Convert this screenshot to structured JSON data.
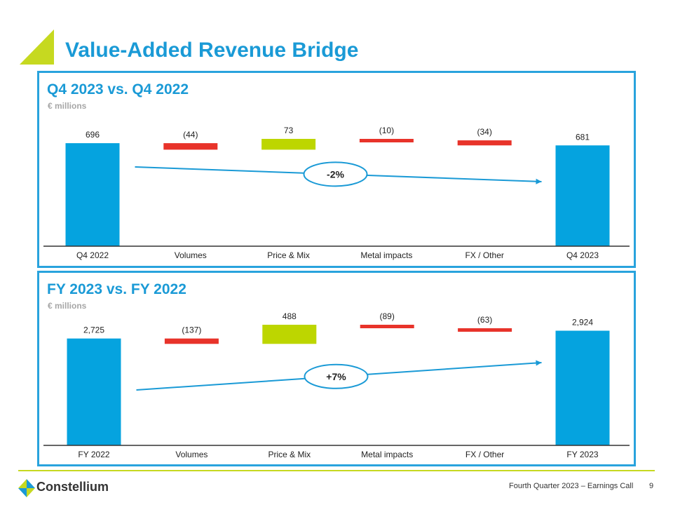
{
  "page": {
    "title": "Value-Added Revenue Bridge",
    "footer_text": "Fourth Quarter 2023 – Earnings Call",
    "page_number": "9",
    "logo_text": "Constellium"
  },
  "colors": {
    "accent_blue": "#1a9ad6",
    "bar_blue": "#05a3df",
    "increase_green": "#bdd600",
    "decrease_red": "#e8332a",
    "lime": "#c6d920"
  },
  "chart_data": [
    {
      "type": "bar",
      "subtype": "waterfall",
      "title": "Q4 2023 vs. Q4 2022",
      "unit_label": "€ millions",
      "categories": [
        "Q4 2022",
        "Volumes",
        "Price & Mix",
        "Metal impacts",
        "FX / Other",
        "Q4 2023"
      ],
      "values": [
        696,
        -44,
        73,
        -10,
        -34,
        681
      ],
      "value_labels": [
        "696",
        "(44)",
        "73",
        "(10)",
        "(34)",
        "681"
      ],
      "kinds": [
        "total",
        "delta",
        "delta",
        "delta",
        "delta",
        "total"
      ],
      "change_label": "-2%",
      "change_direction": "down",
      "grid": false
    },
    {
      "type": "bar",
      "subtype": "waterfall",
      "title": "FY 2023 vs. FY 2022",
      "unit_label": "€ millions",
      "categories": [
        "FY 2022",
        "Volumes",
        "Price & Mix",
        "Metal impacts",
        "FX / Other",
        "FY 2023"
      ],
      "values": [
        2725,
        -137,
        488,
        -89,
        -63,
        2924
      ],
      "value_labels": [
        "2,725",
        "(137)",
        "488",
        "(89)",
        "(63)",
        "2,924"
      ],
      "kinds": [
        "total",
        "delta",
        "delta",
        "delta",
        "delta",
        "total"
      ],
      "change_label": "+7%",
      "change_direction": "up",
      "grid": false
    }
  ]
}
